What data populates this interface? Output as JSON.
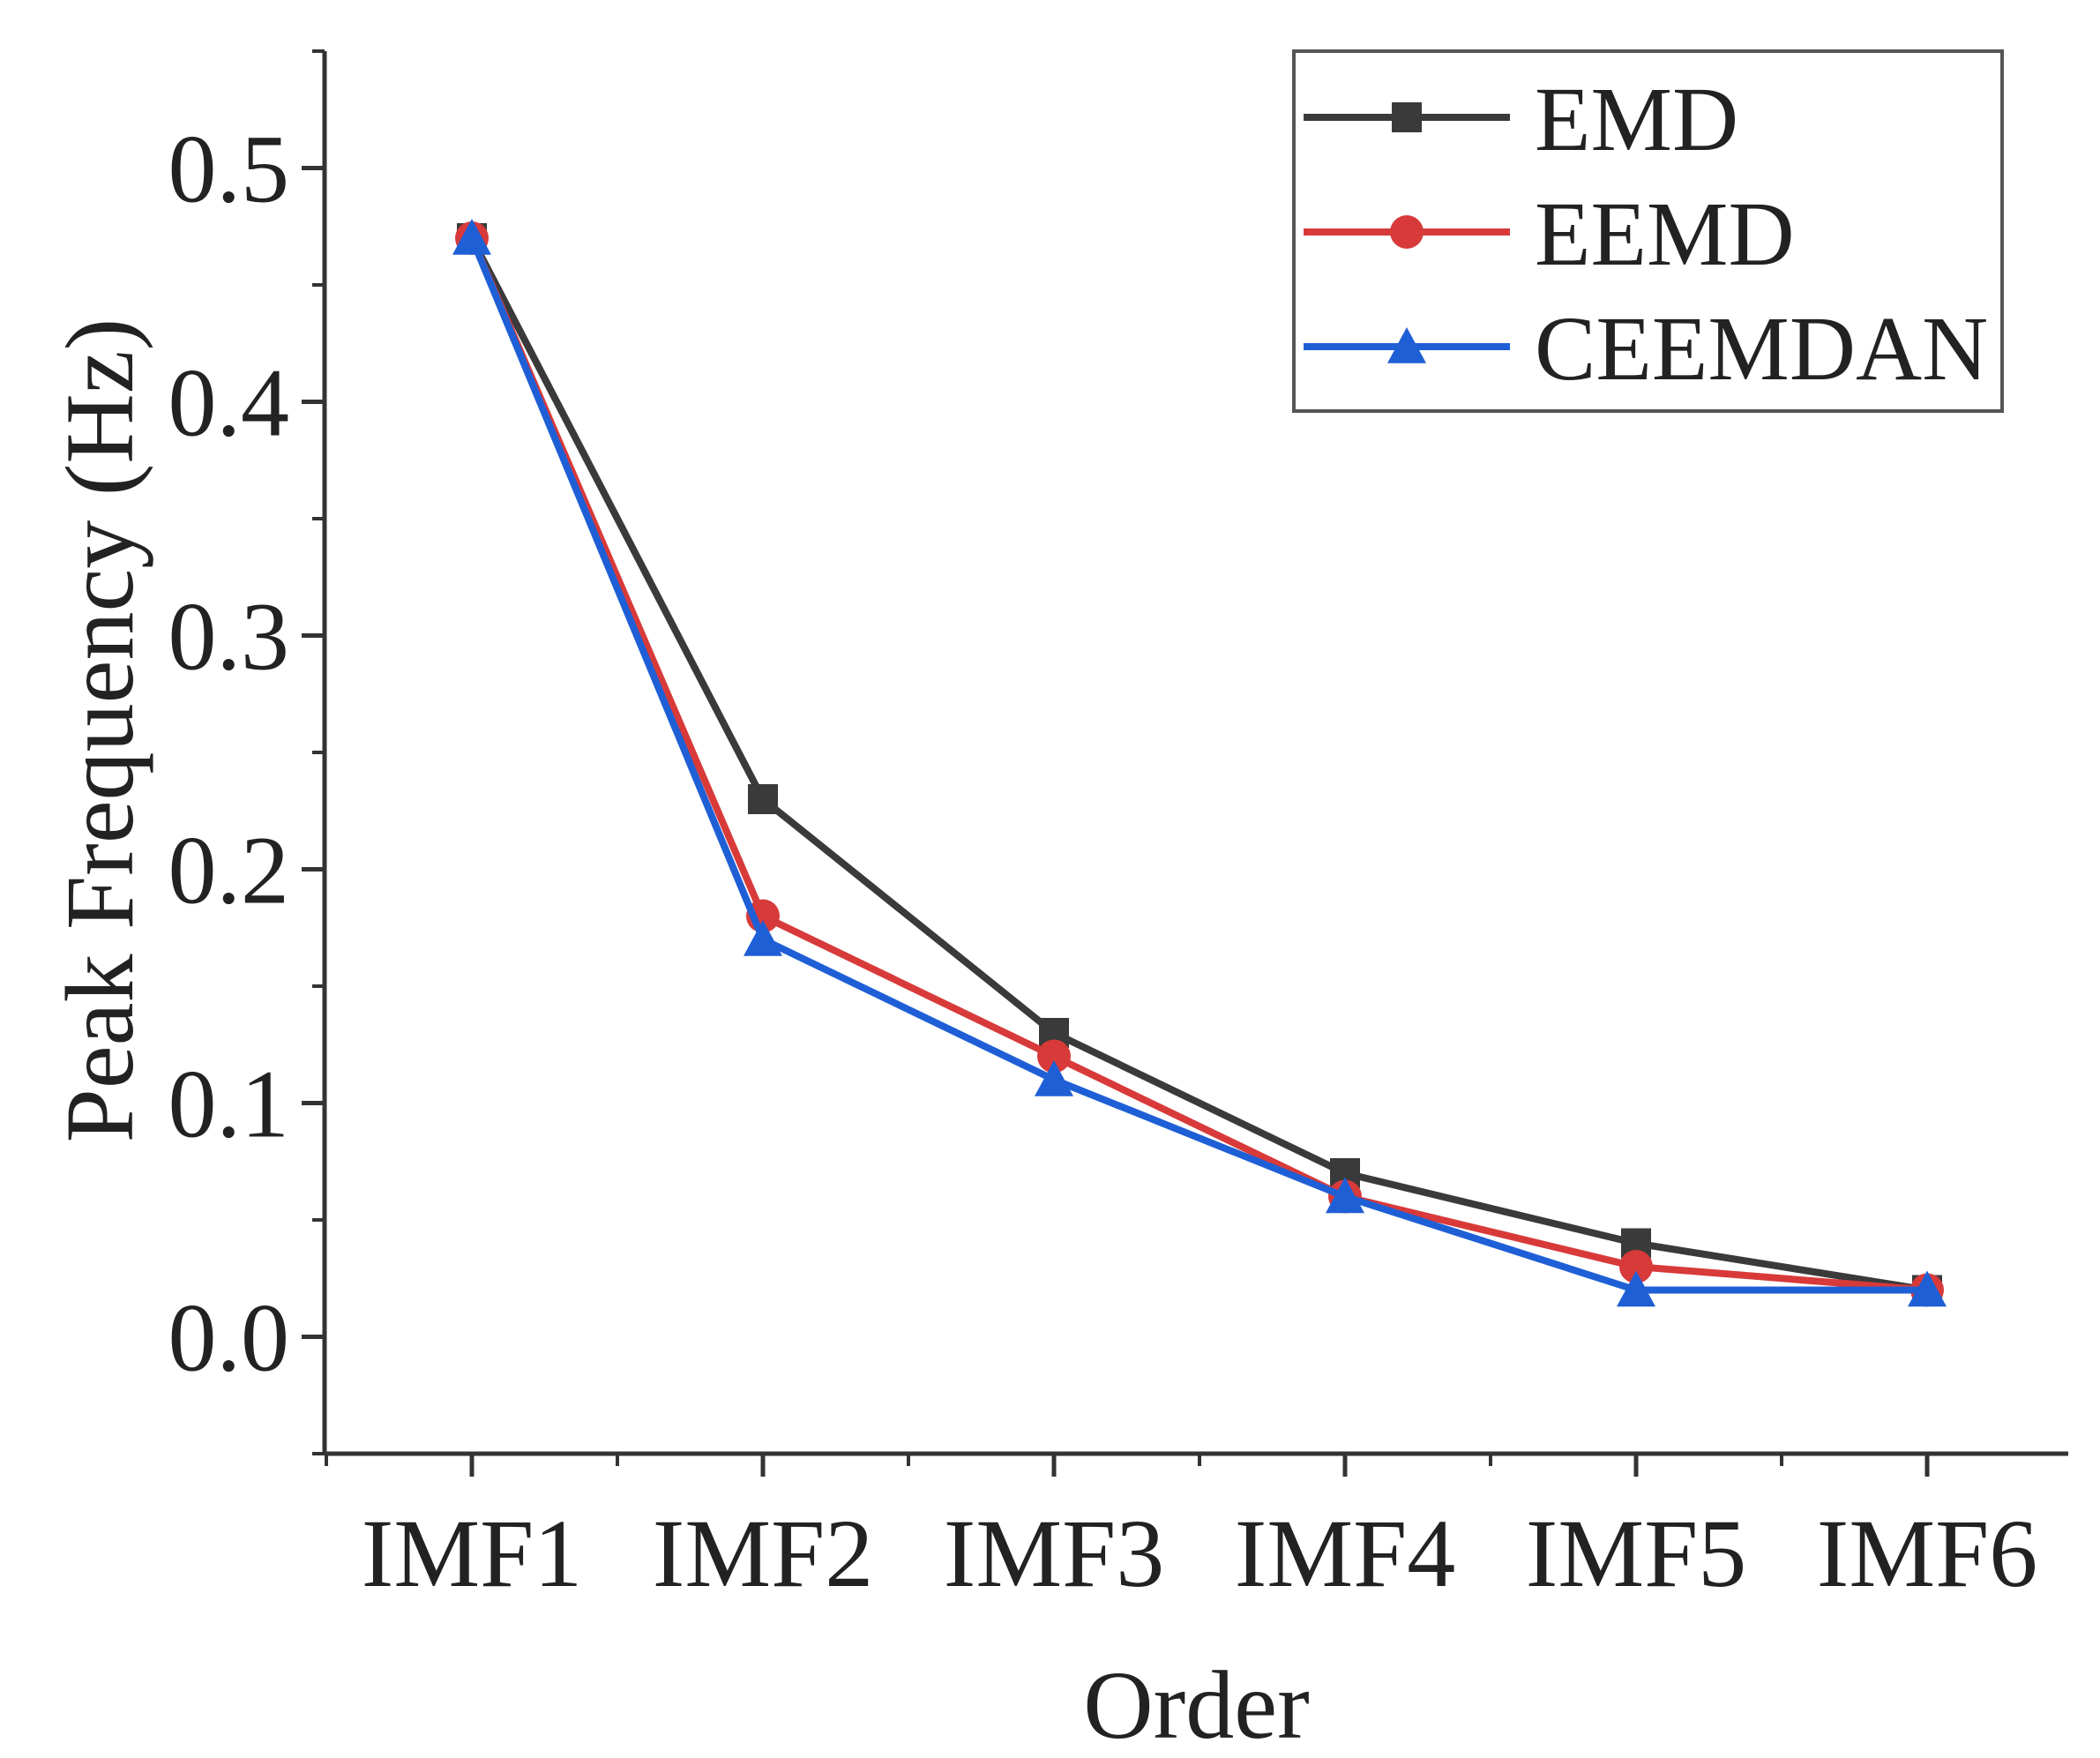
{
  "chart_data": {
    "type": "line",
    "title": "",
    "xlabel": "Order",
    "ylabel": "Peak Frequency (Hz)",
    "categories": [
      "IMF1",
      "IMF2",
      "IMF3",
      "IMF4",
      "IMF5",
      "IMF6"
    ],
    "ylim": [
      -0.05,
      0.55
    ],
    "yticks": [
      0.0,
      0.1,
      0.2,
      0.3,
      0.4,
      0.5
    ],
    "ytick_labels": [
      "0.0",
      "0.1",
      "0.2",
      "0.3",
      "0.4",
      "0.5"
    ],
    "grid": false,
    "legend_position": "top-right",
    "series": [
      {
        "name": "EMD",
        "color": "#3a3a3a",
        "marker": "square",
        "values": [
          0.47,
          0.23,
          0.13,
          0.07,
          0.04,
          0.02
        ]
      },
      {
        "name": "EEMD",
        "color": "#d83a3a",
        "marker": "circle",
        "values": [
          0.47,
          0.18,
          0.12,
          0.06,
          0.03,
          0.02
        ]
      },
      {
        "name": "CEEMDAN",
        "color": "#1f5fd6",
        "marker": "triangle",
        "values": [
          0.47,
          0.17,
          0.11,
          0.06,
          0.02,
          0.02
        ]
      }
    ]
  }
}
